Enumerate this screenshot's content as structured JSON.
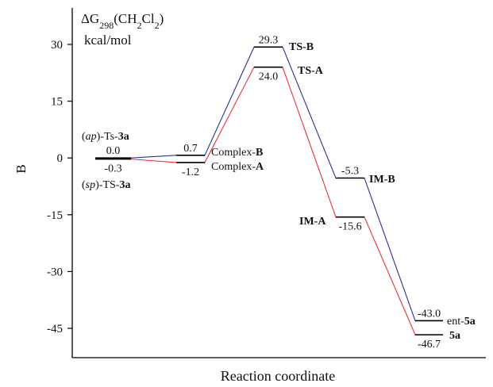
{
  "chart_data": {
    "type": "line",
    "title_line1": {
      "base": "ΔG",
      "sub1": "298",
      "paren": "(CH",
      "sub2": "2",
      "mid": "Cl",
      "sub3": "2",
      "end": ")"
    },
    "units": "kcal/mol",
    "xlabel": "Reaction coordinate",
    "ylabel": "B",
    "ylim": [
      -50,
      37
    ],
    "yticks": [
      30,
      15,
      0,
      -15,
      -30,
      -45
    ],
    "ytick_labels": [
      "30",
      "15",
      "0",
      "-15",
      "-30",
      "-45"
    ],
    "grid": false,
    "colors": {
      "A": "#e8333a",
      "B": "#2b2f94",
      "ref": "#000000"
    },
    "stages": [
      {
        "B": 0.0,
        "A": -0.3,
        "B_value": "0.0",
        "A_value": "-0.3"
      },
      {
        "B": 0.7,
        "A": -1.2,
        "B_value": "0.7",
        "A_value": "-1.2"
      },
      {
        "B": 29.3,
        "A": 24.0,
        "B_value": "29.3",
        "A_value": "24.0"
      },
      {
        "B": -5.3,
        "A": -15.6,
        "B_value": "-5.3",
        "A_value": "-15.6"
      },
      {
        "B": -43.0,
        "A": -46.7,
        "B_value": "-43.0",
        "A_value": "-46.7"
      }
    ],
    "labels": {
      "ap_ts": [
        {
          "t": "(",
          "b": false
        },
        {
          "t": "ap",
          "b": false,
          "i": true
        },
        {
          "t": ")-Ts-",
          "b": false
        },
        {
          "t": "3a",
          "b": true
        }
      ],
      "sp_ts": [
        {
          "t": "(",
          "b": false
        },
        {
          "t": "sp",
          "b": false,
          "i": true
        },
        {
          "t": ")-TS-",
          "b": false
        },
        {
          "t": "3a",
          "b": true
        }
      ],
      "complex_b": [
        {
          "t": "Complex-",
          "b": false
        },
        {
          "t": "B",
          "b": true
        }
      ],
      "complex_a": [
        {
          "t": "Complex-",
          "b": false
        },
        {
          "t": "A",
          "b": true
        }
      ],
      "ts_b": [
        {
          "t": "TS-B",
          "b": true
        }
      ],
      "ts_a": [
        {
          "t": "TS-A",
          "b": true
        }
      ],
      "im_b": [
        {
          "t": "IM-B",
          "b": true
        }
      ],
      "im_a": [
        {
          "t": "IM-A",
          "b": true
        }
      ],
      "ent_5a": [
        {
          "t": "ent-",
          "b": false
        },
        {
          "t": "5a",
          "b": true
        }
      ],
      "p_5a": [
        {
          "t": "5a",
          "b": true
        }
      ]
    }
  }
}
